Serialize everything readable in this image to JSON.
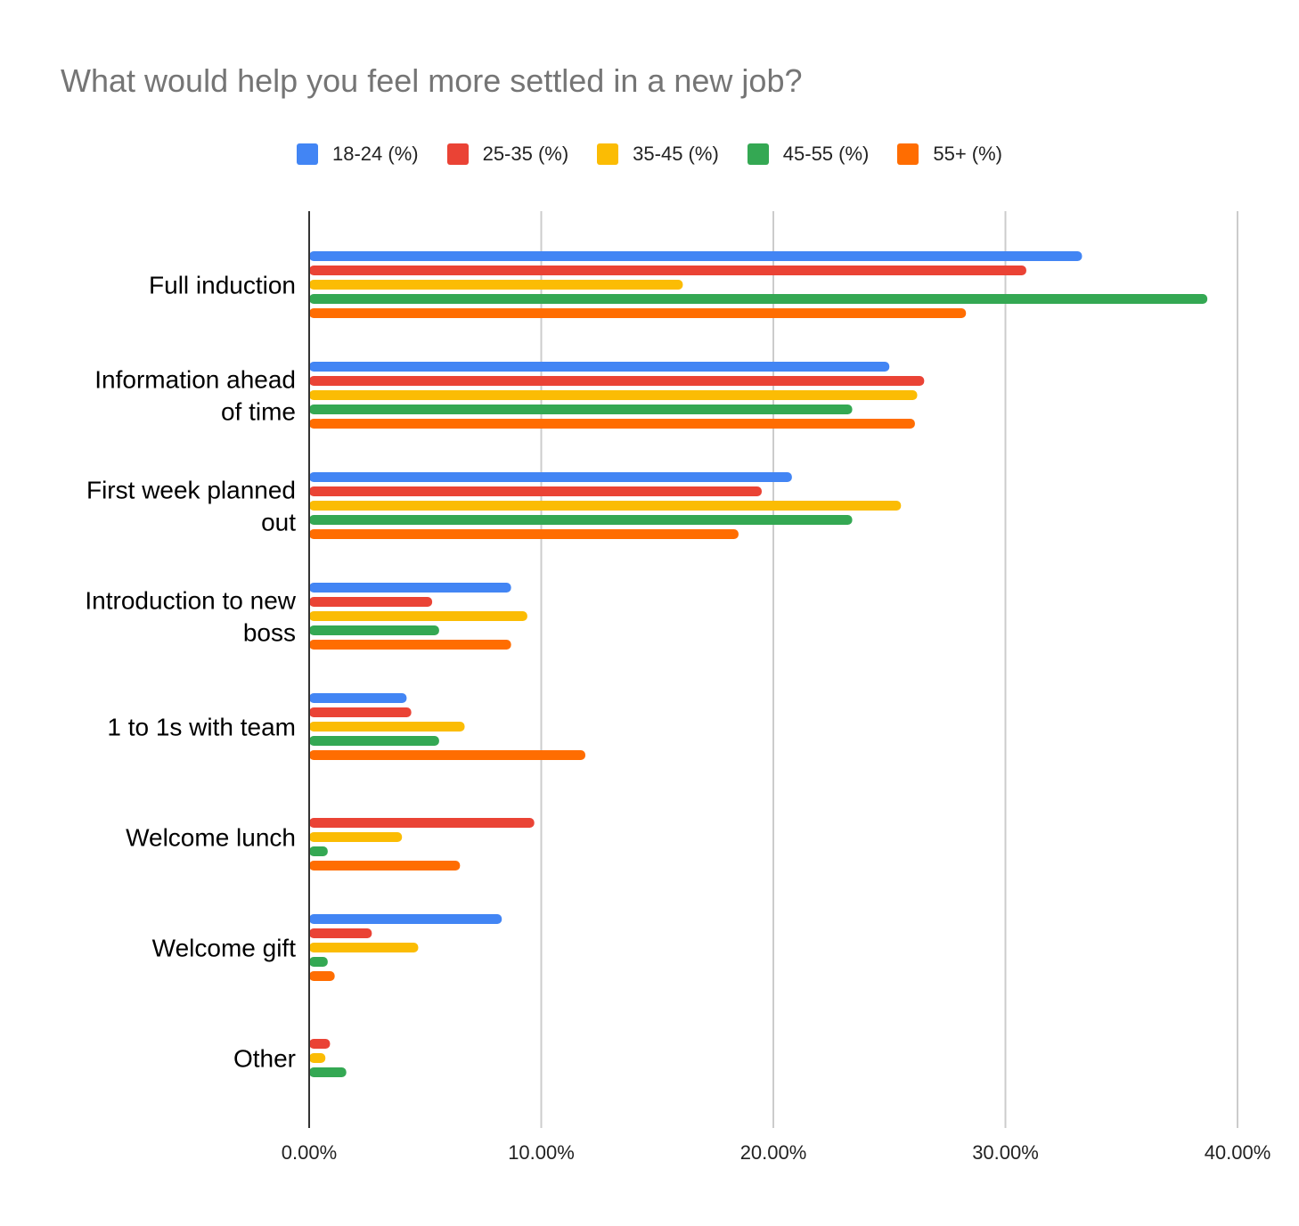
{
  "chart_data": {
    "type": "bar",
    "orientation": "horizontal",
    "title": "What would help you feel more settled in a new job?",
    "xlabel": "",
    "ylabel": "",
    "xlim": [
      0,
      40
    ],
    "grid": true,
    "legend_position": "top-center",
    "x_ticks": [
      "0.00%",
      "10.00%",
      "20.00%",
      "30.00%",
      "40.00%"
    ],
    "categories": [
      {
        "label_lines": [
          "Full induction"
        ]
      },
      {
        "label_lines": [
          "Information ahead",
          "of time"
        ]
      },
      {
        "label_lines": [
          "First week planned",
          "out"
        ]
      },
      {
        "label_lines": [
          "Introduction to new",
          "boss"
        ]
      },
      {
        "label_lines": [
          "1 to 1s with team"
        ]
      },
      {
        "label_lines": [
          "Welcome lunch"
        ]
      },
      {
        "label_lines": [
          "Welcome gift"
        ]
      },
      {
        "label_lines": [
          "Other"
        ]
      }
    ],
    "series": [
      {
        "name": "18-24 (%)",
        "color": "#4285F4",
        "values": [
          33.3,
          25.0,
          20.8,
          8.7,
          4.2,
          0,
          8.3,
          0
        ]
      },
      {
        "name": "25-35 (%)",
        "color": "#EA4335",
        "values": [
          30.9,
          26.5,
          19.5,
          5.3,
          4.4,
          9.7,
          2.7,
          0.9
        ]
      },
      {
        "name": "35-45 (%)",
        "color": "#FBBC04",
        "values": [
          16.1,
          26.2,
          25.5,
          9.4,
          6.7,
          4.0,
          4.7,
          0.7
        ]
      },
      {
        "name": "45-55 (%)",
        "color": "#34A853",
        "values": [
          38.7,
          23.4,
          23.4,
          5.6,
          5.6,
          0.8,
          0.8,
          1.6
        ]
      },
      {
        "name": "55+ (%)",
        "color": "#FF6D01",
        "values": [
          28.3,
          26.1,
          18.5,
          8.7,
          11.9,
          6.5,
          1.1,
          0
        ]
      }
    ]
  }
}
